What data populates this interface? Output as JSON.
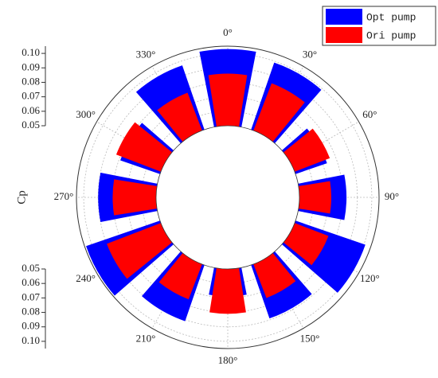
{
  "chart_data": {
    "type": "polar_bar",
    "categories": [
      "0°",
      "30°",
      "60°",
      "90°",
      "120°",
      "150°",
      "180°",
      "210°",
      "240°",
      "270°",
      "300°",
      "330°"
    ],
    "series": [
      {
        "name": "Opt pump",
        "color": "#0000ff",
        "values": [
          0.103,
          0.099,
          0.073,
          0.0825,
          0.101,
          0.089,
          0.069,
          0.091,
          0.104,
          0.09,
          0.079,
          0.097
        ]
      },
      {
        "name": "Ori pump",
        "color": "#ff0000",
        "values": [
          0.086,
          0.085,
          0.076,
          0.072,
          0.075,
          0.075,
          0.081,
          0.076,
          0.09,
          0.08,
          0.083,
          0.078
        ]
      }
    ],
    "ylabel": "Cp",
    "ylim": [
      0.05,
      0.105
    ],
    "yticks": [
      0.05,
      0.06,
      0.07,
      0.08,
      0.09,
      {
        "value": 0.1,
        "label": "0.10"
      }
    ],
    "grid": true,
    "legend": "upper right"
  }
}
